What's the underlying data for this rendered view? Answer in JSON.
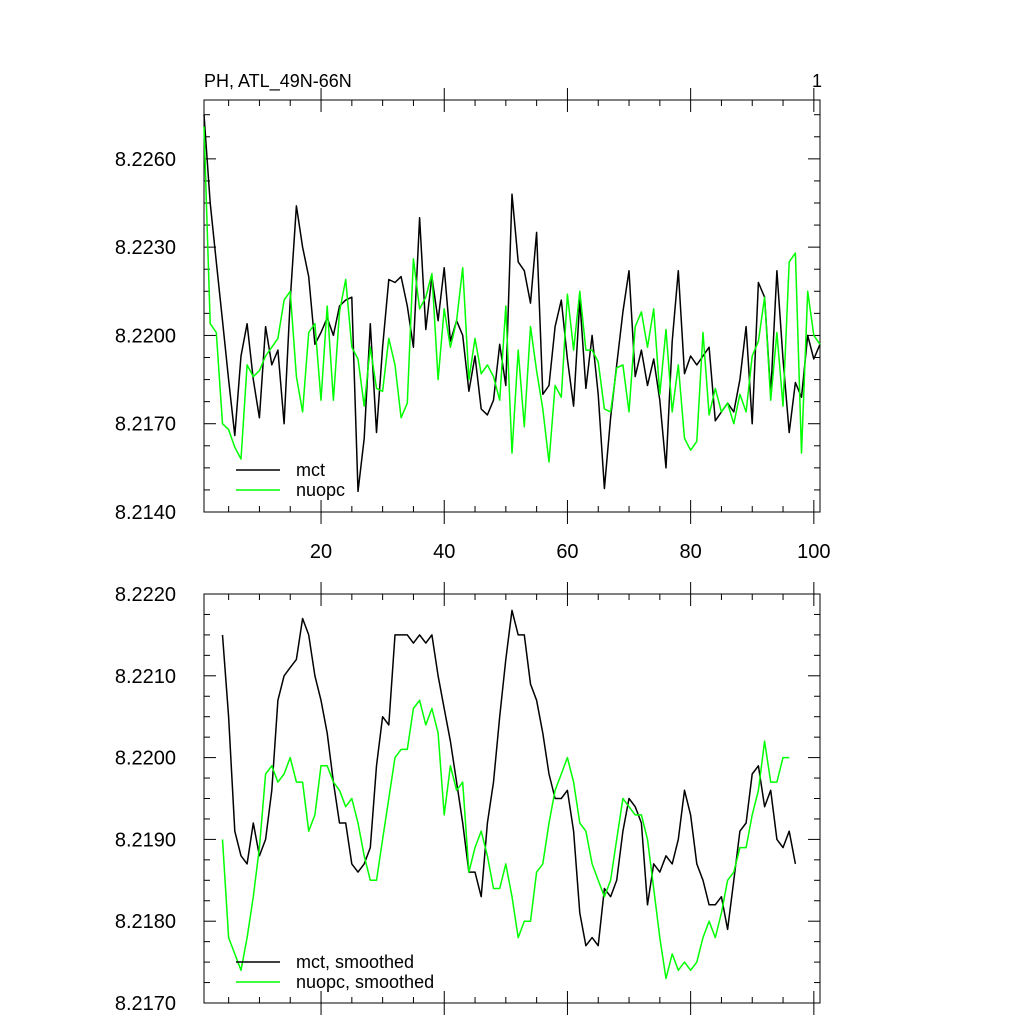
{
  "figure": {
    "title_left": "PH, ATL_49N-66N",
    "title_right": "1"
  },
  "chart_data": [
    {
      "type": "line",
      "title": "PH, ATL_49N-66N",
      "xlim": [
        1,
        101
      ],
      "ylim": [
        8.214,
        8.228
      ],
      "x_major_ticks": [
        20,
        40,
        60,
        80,
        100
      ],
      "x_tick_labels": [
        "20",
        "40",
        "60",
        "80",
        "100"
      ],
      "y_major_ticks": [
        8.214,
        8.217,
        8.22,
        8.223,
        8.226
      ],
      "y_tick_labels": [
        "8.2140",
        "8.2170",
        "8.2200",
        "8.2230",
        "8.2260"
      ],
      "legend_position": "bottom-left",
      "series": [
        {
          "name": "mct",
          "color": "#000000",
          "x_start": 1,
          "values": [
            8.2275,
            8.2245,
            8.2225,
            8.2205,
            8.2185,
            8.2166,
            8.2193,
            8.2204,
            8.2185,
            8.2172,
            8.2203,
            8.219,
            8.2195,
            8.217,
            8.2212,
            8.2244,
            8.223,
            8.222,
            8.2197,
            8.2201,
            8.2206,
            8.22,
            8.221,
            8.2212,
            8.2213,
            8.2147,
            8.2165,
            8.2204,
            8.2167,
            8.2196,
            8.2219,
            8.2218,
            8.222,
            8.221,
            8.2196,
            8.224,
            8.2202,
            8.222,
            8.2205,
            8.2223,
            8.2198,
            8.2205,
            8.22,
            8.2181,
            8.2193,
            8.2175,
            8.2173,
            8.2178,
            8.2197,
            8.2183,
            8.2248,
            8.2225,
            8.2222,
            8.2211,
            8.2235,
            8.218,
            8.2183,
            8.2203,
            8.2212,
            8.2192,
            8.2176,
            8.2212,
            8.2182,
            8.22,
            8.218,
            8.2148,
            8.2172,
            8.219,
            8.2208,
            8.2222,
            8.2186,
            8.2195,
            8.2183,
            8.2192,
            8.2178,
            8.2155,
            8.2198,
            8.2222,
            8.2187,
            8.2193,
            8.219,
            8.2193,
            8.2196,
            8.2171,
            8.2174,
            8.2177,
            8.2174,
            8.2185,
            8.2203,
            8.217,
            8.2218,
            8.2213,
            8.218,
            8.2222,
            8.2192,
            8.2167,
            8.2184,
            8.2179,
            8.22,
            8.2192,
            8.2197
          ]
        },
        {
          "name": "nuopc",
          "color": "#00ff00",
          "x_start": 1,
          "values": [
            8.2271,
            8.2204,
            8.2201,
            8.217,
            8.2168,
            8.2162,
            8.2158,
            8.219,
            8.2186,
            8.2188,
            8.2193,
            8.2196,
            8.2199,
            8.2212,
            8.2215,
            8.2186,
            8.2174,
            8.2201,
            8.2204,
            8.2178,
            8.221,
            8.2178,
            8.2208,
            8.2219,
            8.2196,
            8.2192,
            8.2176,
            8.2196,
            8.2182,
            8.2181,
            8.2199,
            8.219,
            8.2172,
            8.2177,
            8.2226,
            8.2209,
            8.2213,
            8.2221,
            8.2185,
            8.2209,
            8.2196,
            8.2205,
            8.2223,
            8.2185,
            8.2199,
            8.2187,
            8.219,
            8.2186,
            8.2178,
            8.221,
            8.216,
            8.2195,
            8.2169,
            8.2203,
            8.2188,
            8.2175,
            8.2157,
            8.2183,
            8.2179,
            8.2214,
            8.2195,
            8.2215,
            8.2195,
            8.2195,
            8.2191,
            8.2175,
            8.2174,
            8.2189,
            8.219,
            8.2174,
            8.2203,
            8.2208,
            8.2196,
            8.2209,
            8.218,
            8.2202,
            8.2174,
            8.219,
            8.2165,
            8.2161,
            8.2164,
            8.2201,
            8.2173,
            8.2182,
            8.2174,
            8.2177,
            8.217,
            8.218,
            8.2174,
            8.2193,
            8.2198,
            8.2213,
            8.2178,
            8.2201,
            8.2176,
            8.2225,
            8.2228,
            8.216,
            8.2215,
            8.22,
            8.2197
          ]
        }
      ]
    },
    {
      "type": "line",
      "xlim": [
        1,
        101
      ],
      "ylim": [
        8.217,
        8.222
      ],
      "x_major_ticks": [
        20,
        40,
        60,
        80,
        100
      ],
      "y_major_ticks": [
        8.217,
        8.218,
        8.219,
        8.22,
        8.221,
        8.222
      ],
      "y_tick_labels": [
        "8.2170",
        "8.2180",
        "8.2190",
        "8.2200",
        "8.2210",
        "8.2220"
      ],
      "legend_position": "bottom-left",
      "series": [
        {
          "name": "mct, smoothed",
          "color": "#000000",
          "x_start": 4,
          "values": [
            8.2215,
            8.2205,
            8.2191,
            8.2188,
            8.2187,
            8.2192,
            8.2188,
            8.219,
            8.2196,
            8.2207,
            8.221,
            8.2211,
            8.2212,
            8.2217,
            8.2215,
            8.221,
            8.2207,
            8.2203,
            8.2197,
            8.2192,
            8.2192,
            8.2187,
            8.2186,
            8.2187,
            8.2189,
            8.2199,
            8.2205,
            8.2204,
            8.2215,
            8.2215,
            8.2215,
            8.2214,
            8.2215,
            8.2214,
            8.2215,
            8.221,
            8.2206,
            8.2202,
            8.2197,
            8.2192,
            8.2186,
            8.2186,
            8.2183,
            8.2192,
            8.2197,
            8.2205,
            8.2212,
            8.2218,
            8.2215,
            8.2215,
            8.2209,
            8.2207,
            8.2203,
            8.2198,
            8.2195,
            8.2195,
            8.2196,
            8.2191,
            8.2181,
            8.2177,
            8.2178,
            8.2177,
            8.2184,
            8.2183,
            8.2185,
            8.2191,
            8.2195,
            8.2194,
            8.2192,
            8.2182,
            8.2187,
            8.2186,
            8.2188,
            8.2187,
            8.219,
            8.2196,
            8.2193,
            8.2187,
            8.2185,
            8.2182,
            8.2182,
            8.2183,
            8.2179,
            8.2185,
            8.2191,
            8.2192,
            8.2198,
            8.2199,
            8.2194,
            8.2196,
            8.219,
            8.2189,
            8.2191,
            8.2187
          ]
        },
        {
          "name": "nuopc, smoothed",
          "color": "#00ff00",
          "x_start": 4,
          "values": [
            8.219,
            8.2178,
            8.2176,
            8.2174,
            8.2178,
            8.2183,
            8.2189,
            8.2198,
            8.2199,
            8.2197,
            8.2198,
            8.22,
            8.2197,
            8.2197,
            8.2191,
            8.2193,
            8.2199,
            8.2199,
            8.2197,
            8.2196,
            8.2194,
            8.2195,
            8.2192,
            8.2188,
            8.2185,
            8.2185,
            8.219,
            8.2195,
            8.22,
            8.2201,
            8.2201,
            8.2206,
            8.2207,
            8.2204,
            8.2206,
            8.2203,
            8.2193,
            8.2199,
            8.2196,
            8.2197,
            8.2186,
            8.2189,
            8.2191,
            8.2188,
            8.2184,
            8.2184,
            8.2187,
            8.2183,
            8.2178,
            8.218,
            8.218,
            8.2186,
            8.2187,
            8.2192,
            8.2196,
            8.2198,
            8.22,
            8.2197,
            8.2192,
            8.2191,
            8.2187,
            8.2185,
            8.2183,
            8.2185,
            8.219,
            8.2195,
            8.2194,
            8.2193,
            8.2193,
            8.219,
            8.2184,
            8.2178,
            8.2173,
            8.2176,
            8.2174,
            8.2175,
            8.2174,
            8.2175,
            8.2178,
            8.218,
            8.2178,
            8.2181,
            8.2185,
            8.2186,
            8.2189,
            8.2189,
            8.2193,
            8.2196,
            8.2202,
            8.2197,
            8.2197,
            8.22,
            8.22
          ]
        }
      ]
    }
  ]
}
